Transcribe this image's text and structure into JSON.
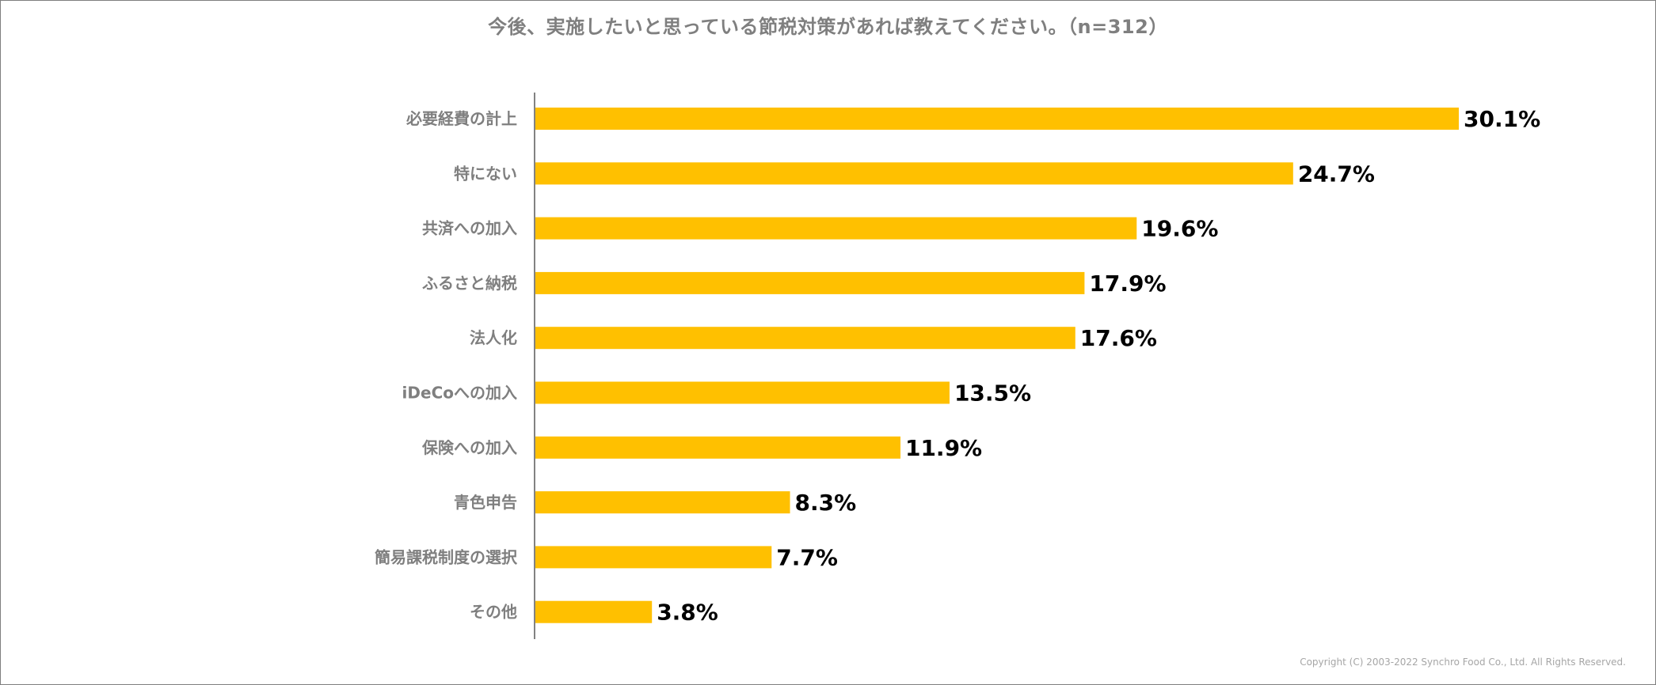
{
  "chart_data": {
    "type": "bar",
    "orientation": "horizontal",
    "title": "今後、実施したいと思っている節税対策があれば教えてください。（n=312）",
    "categories": [
      "必要経費の計上",
      "特にない",
      "共済への加入",
      "ふるさと納税",
      "法人化",
      "iDeCoへの加入",
      "保険への加入",
      "青色申告",
      "簡易課税制度の選択",
      "その他"
    ],
    "values": [
      30.1,
      24.7,
      19.6,
      17.9,
      17.6,
      13.5,
      11.9,
      8.3,
      7.7,
      3.8
    ],
    "value_labels": [
      "30.1%",
      "24.7%",
      "19.6%",
      "17.9%",
      "17.6%",
      "13.5%",
      "11.9%",
      "8.3%",
      "7.7%",
      "3.8%"
    ],
    "xlim": [
      0,
      30.1
    ],
    "xlabel": "",
    "ylabel": "",
    "grid": false,
    "legend": "none",
    "bar_color": "#FFC000"
  },
  "footer": {
    "copyright": "Copyright (C) 2003-2022   Synchro Food Co., Ltd. All Rights Reserved."
  }
}
